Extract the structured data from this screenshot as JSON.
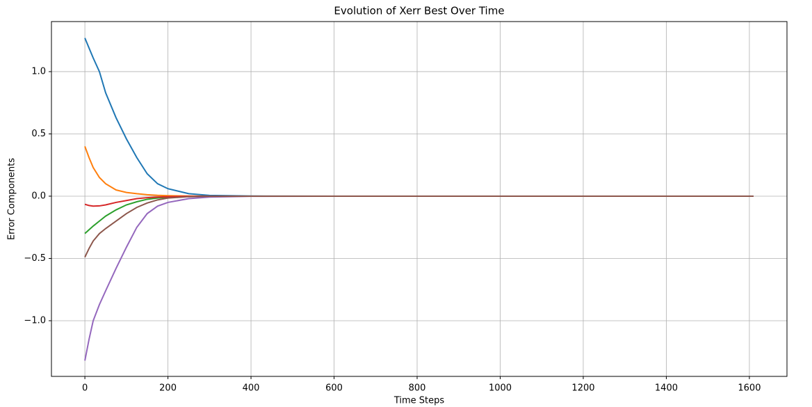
{
  "chart_data": {
    "type": "line",
    "title": "Evolution of Xerr Best Over Time",
    "xlabel": "Time Steps",
    "ylabel": "Error Components",
    "x": [
      0,
      10,
      20,
      35,
      50,
      75,
      100,
      125,
      150,
      175,
      200,
      250,
      300,
      400,
      600,
      800,
      1000,
      1200,
      1400,
      1610
    ],
    "series": [
      {
        "color": "#1f77b4",
        "values": [
          1.27,
          1.19,
          1.11,
          1.0,
          0.83,
          0.63,
          0.46,
          0.31,
          0.18,
          0.1,
          0.06,
          0.02,
          0.006,
          0.001,
          0,
          0,
          0,
          0,
          0,
          0
        ]
      },
      {
        "color": "#ff7f0e",
        "values": [
          0.4,
          0.31,
          0.23,
          0.15,
          0.1,
          0.05,
          0.03,
          0.02,
          0.012,
          0.007,
          0.004,
          0.001,
          0,
          0,
          0,
          0,
          0,
          0,
          0,
          0
        ]
      },
      {
        "color": "#2ca02c",
        "values": [
          -0.3,
          -0.27,
          -0.24,
          -0.2,
          -0.16,
          -0.11,
          -0.07,
          -0.045,
          -0.025,
          -0.015,
          -0.008,
          -0.002,
          0,
          0,
          0,
          0,
          0,
          0,
          0,
          0
        ]
      },
      {
        "color": "#d62728",
        "values": [
          -0.065,
          -0.075,
          -0.08,
          -0.078,
          -0.07,
          -0.05,
          -0.035,
          -0.02,
          -0.012,
          -0.007,
          -0.004,
          -0.001,
          0,
          0,
          0,
          0,
          0,
          0,
          0,
          0
        ]
      },
      {
        "color": "#9467bd",
        "values": [
          -1.32,
          -1.15,
          -1.0,
          -0.87,
          -0.76,
          -0.58,
          -0.41,
          -0.25,
          -0.14,
          -0.08,
          -0.05,
          -0.02,
          -0.007,
          -0.001,
          0,
          0,
          0,
          0,
          0,
          0
        ]
      },
      {
        "color": "#8c564b",
        "values": [
          -0.49,
          -0.42,
          -0.36,
          -0.3,
          -0.26,
          -0.2,
          -0.14,
          -0.09,
          -0.055,
          -0.03,
          -0.015,
          -0.004,
          -0.001,
          0,
          0,
          0,
          0,
          0,
          0,
          0
        ]
      }
    ],
    "xlim": [
      -80.5,
      1690.5
    ],
    "ylim": [
      -1.447,
      1.402
    ],
    "xticks": [
      0,
      200,
      400,
      600,
      800,
      1000,
      1200,
      1400,
      1600
    ],
    "yticks": [
      {
        "value": -1.0,
        "label": "−1.0"
      },
      {
        "value": -0.5,
        "label": "−0.5"
      },
      {
        "value": 0.0,
        "label": "0.0"
      },
      {
        "value": 0.5,
        "label": "0.5"
      },
      {
        "value": 1.0,
        "label": "1.0"
      }
    ],
    "grid": true
  }
}
